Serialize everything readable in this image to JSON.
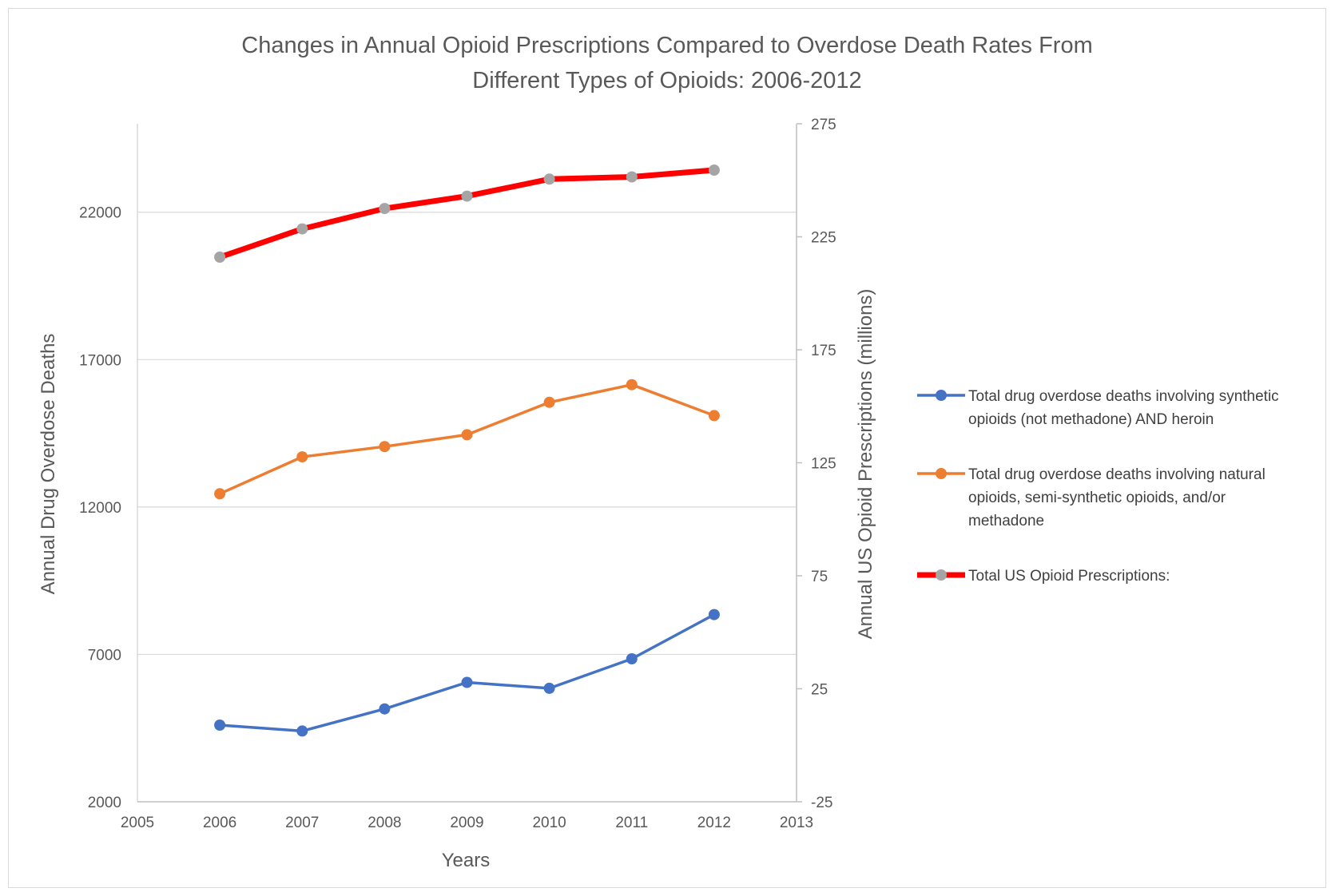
{
  "chart_data": {
    "type": "line",
    "title_lines": [
      "Changes in Annual Opioid Prescriptions Compared to Overdose Death Rates From",
      "Different Types of Opioids: 2006-2012"
    ],
    "xlabel": "Years",
    "ylabel": "Annual Drug Overdose Deaths",
    "y2label": "Annual US Opioid Prescriptions (millions)",
    "xlim": [
      2005,
      2013
    ],
    "ylim": [
      2000,
      25000
    ],
    "y2lim": [
      -25,
      275
    ],
    "xticks": [
      2005,
      2006,
      2007,
      2008,
      2009,
      2010,
      2011,
      2012,
      2013
    ],
    "yticks": [
      2000,
      7000,
      12000,
      17000,
      22000
    ],
    "y2ticks": [
      -25,
      25,
      75,
      125,
      175,
      225,
      275
    ],
    "grid": true,
    "legend_position": "right",
    "x": [
      2006,
      2007,
      2008,
      2009,
      2010,
      2011,
      2012
    ],
    "series": [
      {
        "name_lines": [
          "Total drug overdose deaths involving synthetic",
          "opioids (not methadone) AND heroin"
        ],
        "axis": "left",
        "line_color": "#4472C4",
        "marker_color": "#4472C4",
        "values": [
          4600,
          4400,
          5150,
          6050,
          5850,
          6850,
          8350
        ]
      },
      {
        "name_lines": [
          "Total drug overdose deaths involving natural",
          "opioids, semi-synthetic opioids, and/or",
          "methadone"
        ],
        "axis": "left",
        "line_color": "#ED7D31",
        "marker_color": "#ED7D31",
        "values": [
          12450,
          13700,
          14050,
          14450,
          15550,
          16150,
          15100
        ]
      },
      {
        "name_lines": [
          "Total US Opioid Prescriptions:"
        ],
        "axis": "right",
        "line_color": "#FF0000",
        "marker_color": "#A5A5A5",
        "values": [
          216,
          228.5,
          237.5,
          243,
          250.5,
          251.5,
          254.5
        ]
      }
    ]
  }
}
